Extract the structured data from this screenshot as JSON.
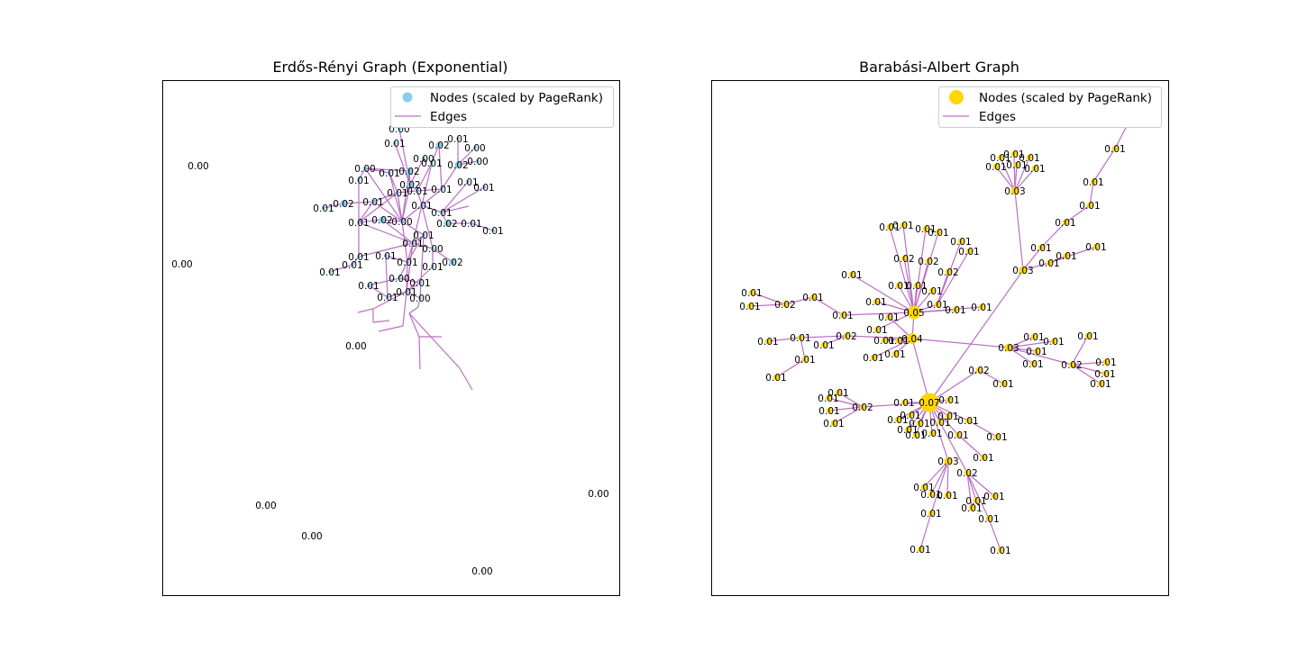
{
  "panels": [
    {
      "title": "Erdős-Rényi Graph (Exponential)",
      "node_color": "#87CEEB",
      "edge_color": "#BA6FC4",
      "legend": {
        "nodes": "Nodes (scaled by PageRank)",
        "edges": "Edges"
      }
    },
    {
      "title": "Barabási-Albert Graph",
      "node_color": "#FFD700",
      "edge_color": "#BA6FC4",
      "legend": {
        "nodes": "Nodes (scaled by PageRank)",
        "edges": "Edges"
      }
    }
  ],
  "er_isolated_labels": [
    "0.00",
    "0.00",
    "0.00",
    "0.00",
    "0.00",
    "0.00",
    "0.00"
  ],
  "er_cluster_labels": [
    "0.00",
    "0.01",
    "0.02",
    "0.01",
    "0.00",
    "0.01",
    "0.00",
    "0.02",
    "0.00",
    "0.01",
    "0.01",
    "0.01",
    "0.01",
    "0.02",
    "0.01",
    "0.01",
    "0.02",
    "0.00",
    "0.01",
    "0.01",
    "0.02",
    "0.01",
    "0.01",
    "0.02",
    "0.00",
    "0.01",
    "0.01",
    "0.02",
    "0.01",
    "0.01",
    "0.01",
    "0.01",
    "0.00",
    "0.01",
    "0.02",
    "0.01",
    "0.01",
    "0.01",
    "0.01",
    "0.01",
    "0.00",
    "0.01",
    "0.01",
    "0.01",
    "0.01",
    "0.00"
  ],
  "ba_labels": [
    "0.01",
    "0.01",
    "0.01",
    "0.01",
    "0.01",
    "0.01",
    "0.01",
    "0.01",
    "0.01",
    "0.03",
    "0.01",
    "0.01",
    "0.01",
    "0.01",
    "0.01",
    "0.01",
    "0.03",
    "0.01",
    "0.01",
    "0.01",
    "0.01",
    "0.01",
    "0.01",
    "0.01",
    "0.02",
    "0.02",
    "0.02",
    "0.01",
    "0.01",
    "0.01",
    "0.01",
    "0.05",
    "0.01",
    "0.01",
    "0.01",
    "0.01",
    "0.01",
    "0.01",
    "0.01",
    "0.02",
    "0.01",
    "0.01",
    "0.04",
    "0.03",
    "0.01",
    "0.01",
    "0.01",
    "0.02",
    "0.01",
    "0.01",
    "0.01",
    "0.02",
    "0.01",
    "0.01",
    "0.01",
    "0.01",
    "0.02",
    "0.07",
    "0.01",
    "0.01",
    "0.01",
    "0.01",
    "0.01",
    "0.01",
    "0.01",
    "0.01",
    "0.01",
    "0.03",
    "0.02",
    "0.01",
    "0.01",
    "0.01",
    "0.01",
    "0.01",
    "0.01",
    "0.01",
    "0.01",
    "0.01"
  ]
}
